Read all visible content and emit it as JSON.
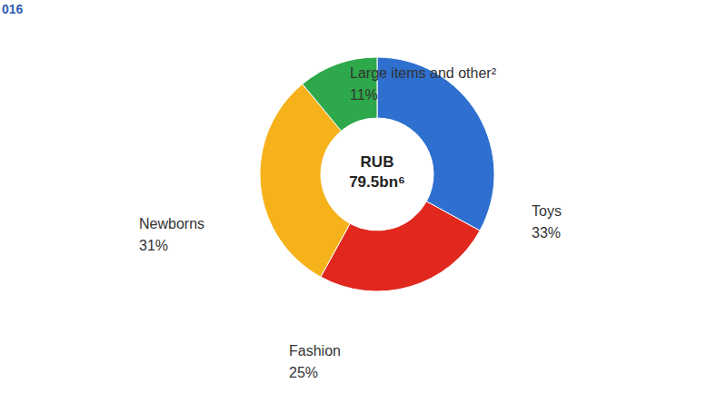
{
  "chart_data": {
    "type": "pie",
    "title": "016",
    "annotations": [
      "RUB 79.5bn⁶"
    ],
    "categories": [
      "Toys",
      "Fashion",
      "Newborns",
      "Large items and other²"
    ],
    "values": [
      33,
      25,
      31,
      11
    ],
    "value_labels": [
      "33%",
      "25%",
      "31%",
      "11%"
    ],
    "colors": [
      "#2e6fd0",
      "#e0281e",
      "#f5b21a",
      "#2da84a"
    ],
    "data_labels": true
  }
}
